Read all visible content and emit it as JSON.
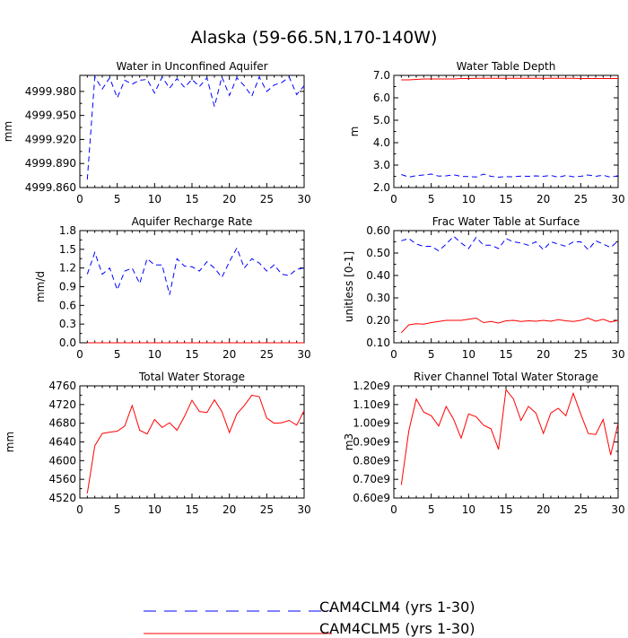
{
  "title": "Alaska (59-66.5N,170-140W)",
  "legend": [
    {
      "label": "CAM4CLM4 (yrs 1-30)",
      "color": "#0000ff",
      "style": "dashed"
    },
    {
      "label": "CAM4CLM5 (yrs 1-30)",
      "color": "#ff0000",
      "style": "solid"
    }
  ],
  "chart_data": [
    {
      "type": "line",
      "title": "Water in Unconfined Aquifer",
      "ylabel": "mm",
      "xlim": [
        0,
        30
      ],
      "xticks": [
        0,
        5,
        10,
        15,
        20,
        25,
        30
      ],
      "ylim": [
        4999.86,
        5000.0
      ],
      "yticks": [
        4999.86,
        4999.89,
        4999.92,
        4999.95,
        4999.98
      ],
      "ytick_labels": [
        "4999.860",
        "4999.890",
        "4999.920",
        "4999.950",
        "4999.980"
      ],
      "x": [
        1,
        2,
        3,
        4,
        5,
        6,
        7,
        8,
        9,
        10,
        11,
        12,
        13,
        14,
        15,
        16,
        17,
        18,
        19,
        20,
        21,
        22,
        23,
        24,
        25,
        26,
        27,
        28,
        29,
        30
      ],
      "series": [
        {
          "name": "CAM4CLM4 (yrs 1-30)",
          "color": "#0000ff",
          "style": "dashed",
          "values": [
            4999.87,
            4999.998,
            4999.983,
            4999.997,
            4999.972,
            4999.994,
            4999.989,
            4999.994,
            4999.995,
            4999.978,
            4999.998,
            4999.984,
            4999.996,
            4999.985,
            4999.995,
            4999.986,
            4999.997,
            4999.961,
            4999.998,
            4999.975,
            4999.997,
            4999.987,
            4999.974,
            4999.998,
            4999.98,
            4999.988,
            4999.991,
            4999.998,
            4999.976,
            4999.987
          ]
        }
      ]
    },
    {
      "type": "line",
      "title": "Water Table Depth",
      "ylabel": "m",
      "xlim": [
        0,
        30
      ],
      "xticks": [
        0,
        5,
        10,
        15,
        20,
        25,
        30
      ],
      "ylim": [
        2.0,
        7.0
      ],
      "yticks": [
        2.0,
        3.0,
        4.0,
        5.0,
        6.0,
        7.0
      ],
      "ytick_labels": [
        "2.0",
        "3.0",
        "4.0",
        "5.0",
        "6.0",
        "7.0"
      ],
      "x": [
        1,
        2,
        3,
        4,
        5,
        6,
        7,
        8,
        9,
        10,
        11,
        12,
        13,
        14,
        15,
        16,
        17,
        18,
        19,
        20,
        21,
        22,
        23,
        24,
        25,
        26,
        27,
        28,
        29,
        30
      ],
      "series": [
        {
          "name": "CAM4CLM4 (yrs 1-30)",
          "color": "#0000ff",
          "style": "dashed",
          "values": [
            2.58,
            2.47,
            2.53,
            2.56,
            2.6,
            2.51,
            2.52,
            2.57,
            2.5,
            2.49,
            2.47,
            2.6,
            2.5,
            2.46,
            2.49,
            2.48,
            2.51,
            2.5,
            2.52,
            2.5,
            2.54,
            2.46,
            2.54,
            2.48,
            2.5,
            2.56,
            2.5,
            2.55,
            2.46,
            2.53
          ]
        },
        {
          "name": "CAM4CLM5 (yrs 1-30)",
          "color": "#ff0000",
          "style": "solid",
          "values": [
            6.8,
            6.8,
            6.82,
            6.84,
            6.84,
            6.84,
            6.84,
            6.84,
            6.86,
            6.86,
            6.87,
            6.87,
            6.87,
            6.87,
            6.87,
            6.87,
            6.87,
            6.87,
            6.87,
            6.87,
            6.87,
            6.87,
            6.87,
            6.87,
            6.86,
            6.86,
            6.86,
            6.86,
            6.86,
            6.86
          ]
        }
      ]
    },
    {
      "type": "line",
      "title": "Aquifer Recharge Rate",
      "ylabel": "mm/d",
      "xlim": [
        0,
        30
      ],
      "xticks": [
        0,
        5,
        10,
        15,
        20,
        25,
        30
      ],
      "ylim": [
        0.0,
        1.8
      ],
      "yticks": [
        0.0,
        0.3,
        0.6,
        0.9,
        1.2,
        1.5,
        1.8
      ],
      "ytick_labels": [
        "0.0",
        "0.3",
        "0.6",
        "0.9",
        "1.2",
        "1.5",
        "1.8"
      ],
      "x": [
        1,
        2,
        3,
        4,
        5,
        6,
        7,
        8,
        9,
        10,
        11,
        12,
        13,
        14,
        15,
        16,
        17,
        18,
        19,
        20,
        21,
        22,
        23,
        24,
        25,
        26,
        27,
        28,
        29,
        30
      ],
      "series": [
        {
          "name": "CAM4CLM4 (yrs 1-30)",
          "color": "#0000ff",
          "style": "dashed",
          "values": [
            1.1,
            1.45,
            1.1,
            1.2,
            0.85,
            1.15,
            1.2,
            0.95,
            1.35,
            1.25,
            1.25,
            0.77,
            1.35,
            1.23,
            1.22,
            1.15,
            1.3,
            1.2,
            1.05,
            1.3,
            1.52,
            1.2,
            1.35,
            1.28,
            1.15,
            1.25,
            1.1,
            1.08,
            1.18,
            1.2
          ]
        },
        {
          "name": "CAM4CLM5 (yrs 1-30)",
          "color": "#ff0000",
          "style": "solid",
          "values": [
            0,
            0,
            0,
            0,
            0,
            0,
            0,
            0,
            0,
            0,
            0,
            0,
            0,
            0,
            0,
            0,
            0,
            0,
            0,
            0,
            0,
            0,
            0,
            0,
            0,
            0,
            0,
            0,
            0,
            0
          ]
        }
      ]
    },
    {
      "type": "line",
      "title": "Frac Water Table at Surface",
      "ylabel": "unitless [0-1]",
      "xlim": [
        0,
        30
      ],
      "xticks": [
        0,
        5,
        10,
        15,
        20,
        25,
        30
      ],
      "ylim": [
        0.1,
        0.6
      ],
      "yticks": [
        0.1,
        0.2,
        0.3,
        0.4,
        0.5,
        0.6
      ],
      "ytick_labels": [
        "0.10",
        "0.20",
        "0.30",
        "0.40",
        "0.50",
        "0.60"
      ],
      "x": [
        1,
        2,
        3,
        4,
        5,
        6,
        7,
        8,
        9,
        10,
        11,
        12,
        13,
        14,
        15,
        16,
        17,
        18,
        19,
        20,
        21,
        22,
        23,
        24,
        25,
        26,
        27,
        28,
        29,
        30
      ],
      "series": [
        {
          "name": "CAM4CLM4 (yrs 1-30)",
          "color": "#0000ff",
          "style": "dashed",
          "values": [
            0.555,
            0.565,
            0.54,
            0.53,
            0.53,
            0.51,
            0.54,
            0.575,
            0.545,
            0.52,
            0.57,
            0.535,
            0.535,
            0.52,
            0.565,
            0.55,
            0.545,
            0.535,
            0.55,
            0.515,
            0.55,
            0.54,
            0.53,
            0.55,
            0.55,
            0.515,
            0.555,
            0.54,
            0.525,
            0.555
          ]
        },
        {
          "name": "CAM4CLM5 (yrs 1-30)",
          "color": "#ff0000",
          "style": "solid",
          "values": [
            0.145,
            0.18,
            0.185,
            0.183,
            0.19,
            0.195,
            0.2,
            0.2,
            0.2,
            0.205,
            0.21,
            0.19,
            0.195,
            0.188,
            0.198,
            0.2,
            0.195,
            0.198,
            0.196,
            0.2,
            0.196,
            0.203,
            0.198,
            0.195,
            0.2,
            0.21,
            0.196,
            0.205,
            0.193,
            0.2
          ]
        }
      ]
    },
    {
      "type": "line",
      "title": "Total Water Storage",
      "ylabel": "mm",
      "xlim": [
        0,
        30
      ],
      "xticks": [
        0,
        5,
        10,
        15,
        20,
        25,
        30
      ],
      "ylim": [
        4520,
        4760
      ],
      "yticks": [
        4520,
        4560,
        4600,
        4640,
        4680,
        4720,
        4760
      ],
      "ytick_labels": [
        "4520",
        "4560",
        "4600",
        "4640",
        "4680",
        "4720",
        "4760"
      ],
      "x": [
        1,
        2,
        3,
        4,
        5,
        6,
        7,
        8,
        9,
        10,
        11,
        12,
        13,
        14,
        15,
        16,
        17,
        18,
        19,
        20,
        21,
        22,
        23,
        24,
        25,
        26,
        27,
        28,
        29,
        30
      ],
      "series": [
        {
          "name": "CAM4CLM5 (yrs 1-30)",
          "color": "#ff0000",
          "style": "solid",
          "values": [
            4530,
            4632,
            4658,
            4661,
            4663,
            4674,
            4718,
            4665,
            4657,
            4688,
            4671,
            4681,
            4665,
            4695,
            4729,
            4705,
            4703,
            4730,
            4705,
            4660,
            4700,
            4718,
            4740,
            4737,
            4691,
            4680,
            4681,
            4686,
            4676,
            4707
          ]
        }
      ]
    },
    {
      "type": "line",
      "title": "River Channel Total Water Storage",
      "ylabel": "m3",
      "xlim": [
        0,
        30
      ],
      "xticks": [
        0,
        5,
        10,
        15,
        20,
        25,
        30
      ],
      "ylim": [
        600000000,
        1200000000
      ],
      "yticks": [
        600000000,
        700000000,
        800000000,
        900000000,
        1000000000,
        1100000000,
        1200000000
      ],
      "ytick_labels": [
        "0.60e9",
        "0.70e9",
        "0.80e9",
        "0.90e9",
        "1.00e9",
        "1.10e9",
        "1.20e9"
      ],
      "x": [
        1,
        2,
        3,
        4,
        5,
        6,
        7,
        8,
        9,
        10,
        11,
        12,
        13,
        14,
        15,
        16,
        17,
        18,
        19,
        20,
        21,
        22,
        23,
        24,
        25,
        26,
        27,
        28,
        29,
        30
      ],
      "series": [
        {
          "name": "CAM4CLM5 (yrs 1-30)",
          "color": "#ff0000",
          "style": "solid",
          "values": [
            670000000,
            960000000,
            1130000000,
            1060000000,
            1040000000,
            985000000,
            1090000000,
            1020000000,
            920000000,
            1050000000,
            1035000000,
            990000000,
            970000000,
            860000000,
            1180000000,
            1130000000,
            1015000000,
            1090000000,
            1055000000,
            945000000,
            1055000000,
            1080000000,
            1040000000,
            1160000000,
            1050000000,
            945000000,
            940000000,
            1020000000,
            830000000,
            1000000000
          ]
        }
      ]
    }
  ]
}
